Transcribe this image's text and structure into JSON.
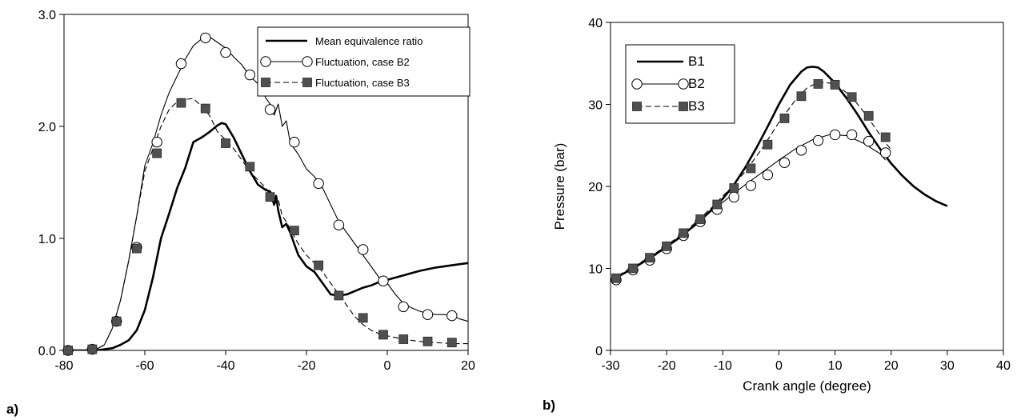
{
  "chart_data": [
    {
      "type": "line",
      "panel_label": "a)",
      "xlabel": "",
      "ylabel": "",
      "xlim": [
        -80,
        20
      ],
      "ylim": [
        0,
        3
      ],
      "xticks": [
        -80,
        -60,
        -40,
        -20,
        0,
        20
      ],
      "yticks": [
        0,
        1,
        2,
        3
      ],
      "xtick_labels": [
        "-80",
        "-60",
        "-40",
        "-20",
        "0",
        "20"
      ],
      "ytick_labels": [
        "0.0",
        "1.0",
        "2.0",
        "3.0"
      ],
      "legend_position": "top-right",
      "series": [
        {
          "name": "Mean equivalence ratio",
          "style": "solid-thick",
          "marker": "none",
          "x": [
            -80,
            -72,
            -68,
            -66,
            -64,
            -62,
            -60,
            -58,
            -56,
            -54,
            -52,
            -50,
            -48,
            -46,
            -44,
            -42,
            -41,
            -40,
            -38,
            -36,
            -34,
            -32,
            -30,
            -29,
            -28,
            -27.5,
            -27,
            -26,
            -25,
            -24,
            -23,
            -22,
            -20,
            -18,
            -16,
            -14,
            -12,
            -10,
            -8,
            -6,
            -4,
            -2,
            0,
            4,
            8,
            12,
            16,
            20
          ],
          "y": [
            0.0,
            0.0,
            0.02,
            0.05,
            0.09,
            0.18,
            0.36,
            0.65,
            1.0,
            1.22,
            1.45,
            1.63,
            1.86,
            1.9,
            1.95,
            2.01,
            2.03,
            2.02,
            1.9,
            1.75,
            1.6,
            1.48,
            1.43,
            1.42,
            1.3,
            1.38,
            1.25,
            1.1,
            1.13,
            1.05,
            0.95,
            0.85,
            0.75,
            0.7,
            0.6,
            0.5,
            0.49,
            0.5,
            0.53,
            0.56,
            0.58,
            0.61,
            0.63,
            0.67,
            0.71,
            0.74,
            0.76,
            0.78
          ]
        },
        {
          "name": "Fluctuation, case B2",
          "style": "solid-thin",
          "marker": "open-circle",
          "x": [
            -80,
            -75,
            -72,
            -70,
            -68,
            -66,
            -64,
            -62,
            -60,
            -58,
            -56,
            -54,
            -52,
            -50,
            -48,
            -46,
            -44,
            -42,
            -40,
            -38,
            -36,
            -34,
            -32,
            -30,
            -29,
            -28,
            -27,
            -26,
            -25,
            -24,
            -22,
            -20,
            -18,
            -16,
            -14,
            -12,
            -10,
            -8,
            -6,
            -4,
            -2,
            0,
            2,
            4,
            6,
            8,
            10,
            12,
            14,
            16,
            18,
            20
          ],
          "y": [
            0.0,
            0.0,
            0.01,
            0.05,
            0.2,
            0.45,
            0.8,
            1.2,
            1.65,
            1.85,
            2.1,
            2.3,
            2.45,
            2.6,
            2.72,
            2.78,
            2.8,
            2.75,
            2.7,
            2.62,
            2.55,
            2.45,
            2.38,
            2.25,
            2.2,
            2.1,
            2.2,
            2.0,
            2.05,
            1.85,
            1.75,
            1.62,
            1.55,
            1.45,
            1.3,
            1.15,
            1.05,
            0.95,
            0.85,
            0.75,
            0.65,
            0.6,
            0.5,
            0.42,
            0.38,
            0.35,
            0.33,
            0.32,
            0.32,
            0.31,
            0.28,
            0.26
          ]
        },
        {
          "name": "Fluctuation, case B3",
          "style": "dashed",
          "marker": "filled-square",
          "x": [
            -80,
            -75,
            -72,
            -70,
            -68,
            -66,
            -64,
            -62,
            -60,
            -58,
            -56,
            -54,
            -52,
            -50,
            -48,
            -46,
            -44,
            -42,
            -40,
            -38,
            -36,
            -34,
            -32,
            -30,
            -29,
            -28,
            -27,
            -26,
            -25,
            -24,
            -22,
            -20,
            -18,
            -16,
            -14,
            -12,
            -10,
            -8,
            -6,
            -4,
            -2,
            0,
            4,
            8,
            12,
            16,
            20
          ],
          "y": [
            0.0,
            0.0,
            0.01,
            0.05,
            0.2,
            0.45,
            0.8,
            1.2,
            1.6,
            1.8,
            2.0,
            2.15,
            2.22,
            2.24,
            2.25,
            2.18,
            2.1,
            1.95,
            1.88,
            1.8,
            1.7,
            1.6,
            1.52,
            1.45,
            1.38,
            1.3,
            1.35,
            1.2,
            1.15,
            1.08,
            0.95,
            0.85,
            0.78,
            0.7,
            0.6,
            0.5,
            0.4,
            0.3,
            0.23,
            0.18,
            0.15,
            0.13,
            0.1,
            0.08,
            0.07,
            0.06,
            0.06
          ]
        }
      ],
      "markers": {
        "Fluctuation, case B2": {
          "x": [
            -79,
            -73,
            -67,
            -62,
            -57,
            -51,
            -45,
            -40,
            -34,
            -29,
            -23,
            -17,
            -12,
            -6,
            -1,
            4,
            10,
            16
          ],
          "y": [
            0.0,
            0.01,
            0.26,
            0.92,
            1.86,
            2.56,
            2.79,
            2.66,
            2.46,
            2.15,
            1.86,
            1.49,
            1.12,
            0.9,
            0.62,
            0.39,
            0.32,
            0.31
          ]
        },
        "Fluctuation, case B3": {
          "x": [
            -79,
            -73,
            -67,
            -62,
            -57,
            -51,
            -45,
            -40,
            -34,
            -29,
            -23,
            -17,
            -12,
            -6,
            -1,
            4,
            10,
            16
          ],
          "y": [
            0.0,
            0.01,
            0.26,
            0.91,
            1.76,
            2.21,
            2.16,
            1.85,
            1.64,
            1.37,
            1.07,
            0.76,
            0.49,
            0.29,
            0.14,
            0.1,
            0.08,
            0.07
          ]
        }
      }
    },
    {
      "type": "line",
      "panel_label": "b)",
      "xlabel": "Crank angle (degree)",
      "ylabel": "Pressure (bar)",
      "xlim": [
        -30,
        40
      ],
      "ylim": [
        0,
        40
      ],
      "xticks": [
        -30,
        -20,
        -10,
        0,
        10,
        20,
        30,
        40
      ],
      "yticks": [
        0,
        10,
        20,
        30,
        40
      ],
      "xtick_labels": [
        "-30",
        "-20",
        "-10",
        "0",
        "10",
        "20",
        "30",
        "40"
      ],
      "ytick_labels": [
        "0",
        "10",
        "20",
        "30",
        "40"
      ],
      "legend_position": "top-left",
      "series": [
        {
          "name": "B1",
          "style": "solid-thick",
          "marker": "none",
          "x": [
            -30,
            -26,
            -22,
            -18,
            -14,
            -10,
            -8,
            -6,
            -4,
            -2,
            0,
            2,
            4,
            5,
            6,
            7,
            8,
            10,
            12,
            14,
            16,
            18,
            20,
            22,
            24,
            26,
            28,
            30
          ],
          "y": [
            8.5,
            10.0,
            11.7,
            13.6,
            15.8,
            18.5,
            20.2,
            22.3,
            24.7,
            27.3,
            30.0,
            32.4,
            34.0,
            34.5,
            34.6,
            34.5,
            34.0,
            32.6,
            30.8,
            28.8,
            26.6,
            24.6,
            22.8,
            21.3,
            20.0,
            19.0,
            18.2,
            17.6
          ]
        },
        {
          "name": "B2",
          "style": "solid-thin",
          "marker": "open-circle",
          "x": [
            -30,
            -27,
            -24,
            -21,
            -18,
            -15,
            -12,
            -9,
            -6,
            -3,
            0,
            3,
            6,
            9,
            12,
            15,
            18,
            19
          ],
          "y": [
            8.5,
            9.6,
            10.8,
            12.2,
            13.7,
            15.3,
            17.0,
            18.6,
            20.2,
            21.7,
            23.2,
            24.6,
            25.7,
            26.3,
            26.2,
            25.3,
            24.0,
            23.2
          ]
        },
        {
          "name": "B3",
          "style": "dashed",
          "marker": "filled-square",
          "x": [
            -30,
            -27,
            -24,
            -21,
            -18,
            -15,
            -12,
            -9,
            -6,
            -3,
            0,
            3,
            5,
            7,
            9,
            11,
            13,
            15,
            17,
            19,
            20
          ],
          "y": [
            8.6,
            9.8,
            11.0,
            12.3,
            13.8,
            15.5,
            17.4,
            19.5,
            21.8,
            24.6,
            27.8,
            30.6,
            32.0,
            32.7,
            32.6,
            32.0,
            30.9,
            29.2,
            27.3,
            25.3,
            24.5
          ]
        }
      ],
      "markers": {
        "B2": {
          "x": [
            -29,
            -26,
            -23,
            -20,
            -17,
            -14,
            -11,
            -8,
            -5,
            -2,
            1,
            4,
            7,
            10,
            13,
            16,
            19
          ],
          "y": [
            8.6,
            9.8,
            11.0,
            12.4,
            14.0,
            15.7,
            17.2,
            18.7,
            20.1,
            21.4,
            22.9,
            24.4,
            25.6,
            26.3,
            26.3,
            25.5,
            24.1
          ]
        },
        "B3": {
          "x": [
            -29,
            -26,
            -23,
            -20,
            -17,
            -14,
            -11,
            -8,
            -5,
            -2,
            1,
            4,
            7,
            10,
            13,
            16,
            19
          ],
          "y": [
            8.8,
            10.0,
            11.3,
            12.7,
            14.3,
            16.0,
            17.8,
            19.8,
            22.2,
            25.1,
            28.3,
            31.0,
            32.5,
            32.4,
            30.9,
            28.6,
            26.0
          ]
        }
      }
    }
  ]
}
